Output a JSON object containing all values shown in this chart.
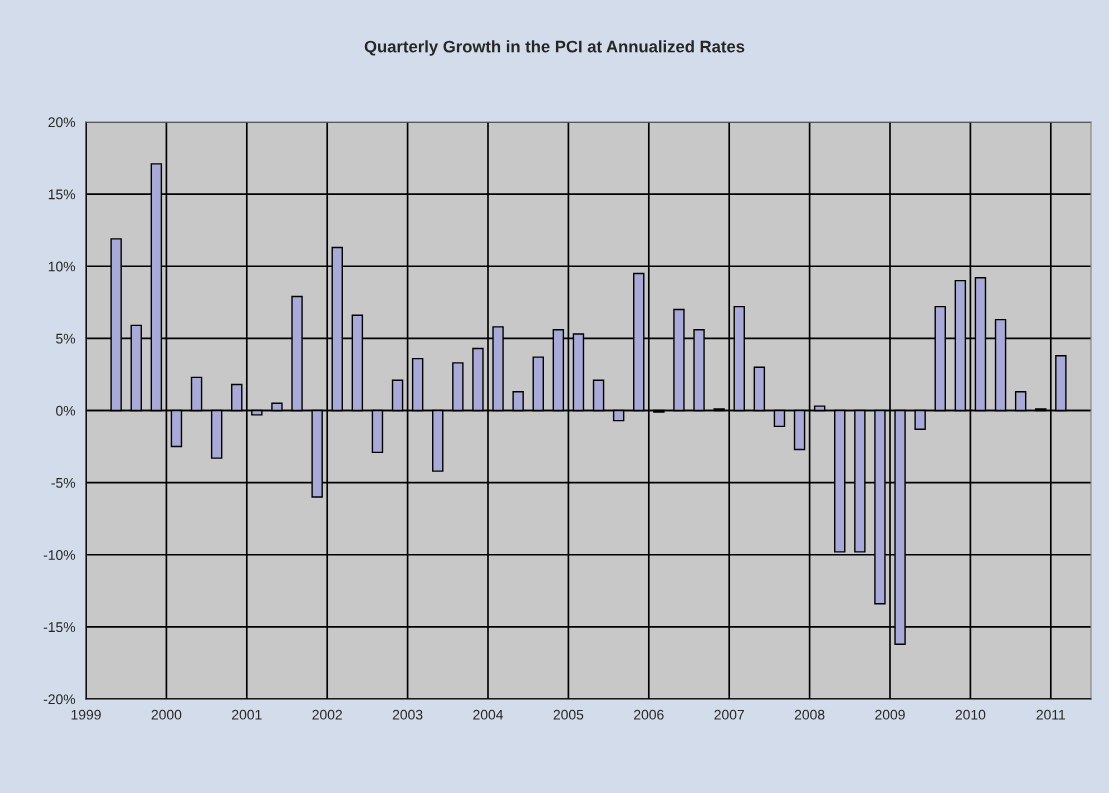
{
  "chart_data": {
    "type": "bar",
    "title": "Quarterly Growth in the PCI at Annualized Rates",
    "x": [
      1999.375,
      1999.625,
      1999.875,
      2000.125,
      2000.375,
      2000.625,
      2000.875,
      2001.125,
      2001.375,
      2001.625,
      2001.875,
      2002.125,
      2002.375,
      2002.625,
      2002.875,
      2003.125,
      2003.375,
      2003.625,
      2003.875,
      2004.125,
      2004.375,
      2004.625,
      2004.875,
      2005.125,
      2005.375,
      2005.625,
      2005.875,
      2006.125,
      2006.375,
      2006.625,
      2006.875,
      2007.125,
      2007.375,
      2007.625,
      2007.875,
      2008.125,
      2008.375,
      2008.625,
      2008.875,
      2009.125,
      2009.375,
      2009.625,
      2009.875,
      2010.125,
      2010.375,
      2010.625,
      2010.875,
      2011.125
    ],
    "values": [
      11.9,
      5.9,
      17.1,
      -2.5,
      2.3,
      -3.3,
      1.8,
      -0.3,
      0.5,
      7.9,
      -6.0,
      11.3,
      6.6,
      -2.9,
      2.1,
      3.6,
      -4.2,
      3.3,
      4.3,
      5.8,
      1.3,
      3.7,
      5.6,
      5.3,
      2.1,
      -0.7,
      9.5,
      -0.1,
      7.0,
      5.6,
      0.1,
      7.2,
      3.0,
      -1.1,
      -2.7,
      0.3,
      -9.8,
      -9.8,
      -13.4,
      -16.2,
      -1.3,
      7.2,
      9.0,
      9.2,
      6.3,
      1.3,
      0.1,
      3.8
    ],
    "color": "#aaaad8",
    "xlim": [
      1999,
      2011.5
    ],
    "xticks": [
      1999,
      2000,
      2001,
      2002,
      2003,
      2004,
      2005,
      2006,
      2007,
      2008,
      2009,
      2010,
      2011
    ],
    "ylim": [
      -20,
      20
    ],
    "yticks": [
      {
        "value": -20,
        "label": "-20%"
      },
      {
        "value": -15,
        "label": "-15%"
      },
      {
        "value": -10,
        "label": "-10%"
      },
      {
        "value": -5,
        "label": "-5%"
      },
      {
        "value": 0,
        "label": "0%"
      },
      {
        "value": 5,
        "label": "5%"
      },
      {
        "value": 10,
        "label": "10%"
      },
      {
        "value": 15,
        "label": "15%"
      },
      {
        "value": 20,
        "label": "20%"
      }
    ],
    "grid": true,
    "legend": false
  }
}
